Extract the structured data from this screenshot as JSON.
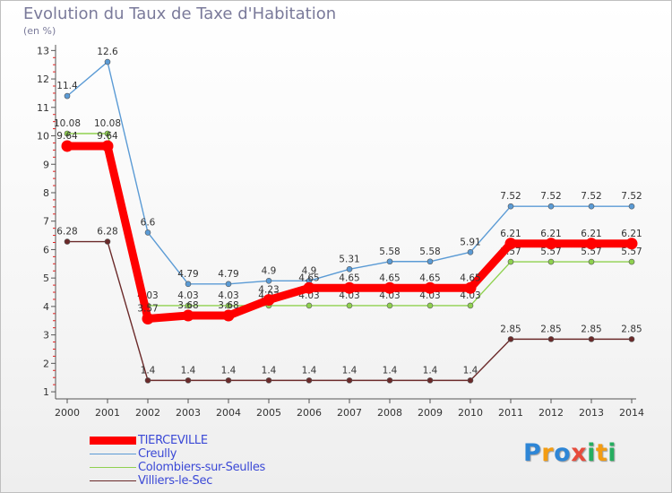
{
  "chart_data": {
    "type": "line",
    "title": "Evolution du Taux de Taxe d'Habitation",
    "subtitle": "(en %)",
    "x": [
      2000,
      2001,
      2002,
      2003,
      2004,
      2005,
      2006,
      2007,
      2008,
      2009,
      2010,
      2011,
      2012,
      2013,
      2014
    ],
    "x_tick_labels": [
      "2000",
      "2001",
      "2002",
      "2003",
      "2004",
      "2005",
      "2006",
      "2007",
      "2008",
      "2009",
      "2010",
      "2011",
      "2012",
      "2013",
      "2014"
    ],
    "y_ticks": [
      1,
      2,
      3,
      4,
      5,
      6,
      7,
      8,
      9,
      10,
      11,
      12,
      13
    ],
    "ylim": [
      0.75,
      13.2
    ],
    "grid": false,
    "legend_position": "bottom-left",
    "series": [
      {
        "name": "TIERCEVILLE",
        "color": "#ff0000",
        "emphasis": true,
        "values": [
          9.64,
          9.64,
          3.57,
          3.68,
          3.68,
          4.23,
          4.65,
          4.65,
          4.65,
          4.65,
          4.65,
          6.21,
          6.21,
          6.21,
          6.21
        ],
        "labels": [
          "9.64",
          "9.64",
          "3.57",
          "3.68",
          "3.68",
          "4.23",
          "4.65",
          "4.65",
          "4.65",
          "4.65",
          "4.65",
          "6.21",
          "6.21",
          "6.21",
          "6.21"
        ]
      },
      {
        "name": "Creully",
        "color": "#5b9bd5",
        "values": [
          11.4,
          12.6,
          6.6,
          4.79,
          4.79,
          4.9,
          4.9,
          5.31,
          5.58,
          5.58,
          5.91,
          7.52,
          7.52,
          7.52,
          7.52
        ],
        "labels": [
          "11.4",
          "12.6",
          "6.6",
          "4.79",
          "4.79",
          "4.9",
          "4.9",
          "5.31",
          "5.58",
          "5.58",
          "5.91",
          "7.52",
          "7.52",
          "7.52",
          "7.52"
        ]
      },
      {
        "name": "Colombiers-sur-Seulles",
        "color": "#8fd14f",
        "values": [
          10.08,
          10.08,
          4.03,
          4.03,
          4.03,
          4.03,
          4.03,
          4.03,
          4.03,
          4.03,
          4.03,
          5.57,
          5.57,
          5.57,
          5.57
        ],
        "labels": [
          "10.08",
          "10.08",
          "4.03",
          "4.03",
          "4.03",
          "4.03",
          "4.03",
          "4.03",
          "4.03",
          "4.03",
          "4.03",
          "5.57",
          "5.57",
          "5.57",
          "5.57"
        ]
      },
      {
        "name": "Villiers-le-Sec",
        "color": "#6b2a2a",
        "values": [
          6.28,
          6.28,
          1.4,
          1.4,
          1.4,
          1.4,
          1.4,
          1.4,
          1.4,
          1.4,
          1.4,
          2.85,
          2.85,
          2.85,
          2.85
        ],
        "labels": [
          "6.28",
          "6.28",
          "1.4",
          "1.4",
          "1.4",
          "1.4",
          "1.4",
          "1.4",
          "1.4",
          "1.4",
          "1.4",
          "2.85",
          "2.85",
          "2.85",
          "2.85"
        ]
      }
    ]
  },
  "logo": {
    "text": "Proxiti",
    "letters": [
      "P",
      "r",
      "o",
      "x",
      "i",
      "t",
      "i"
    ],
    "colors": [
      "#2e86d6",
      "#f39c12",
      "#2e86d6",
      "#e74c3c",
      "#27ae60",
      "#f39c12",
      "#27ae60"
    ]
  }
}
